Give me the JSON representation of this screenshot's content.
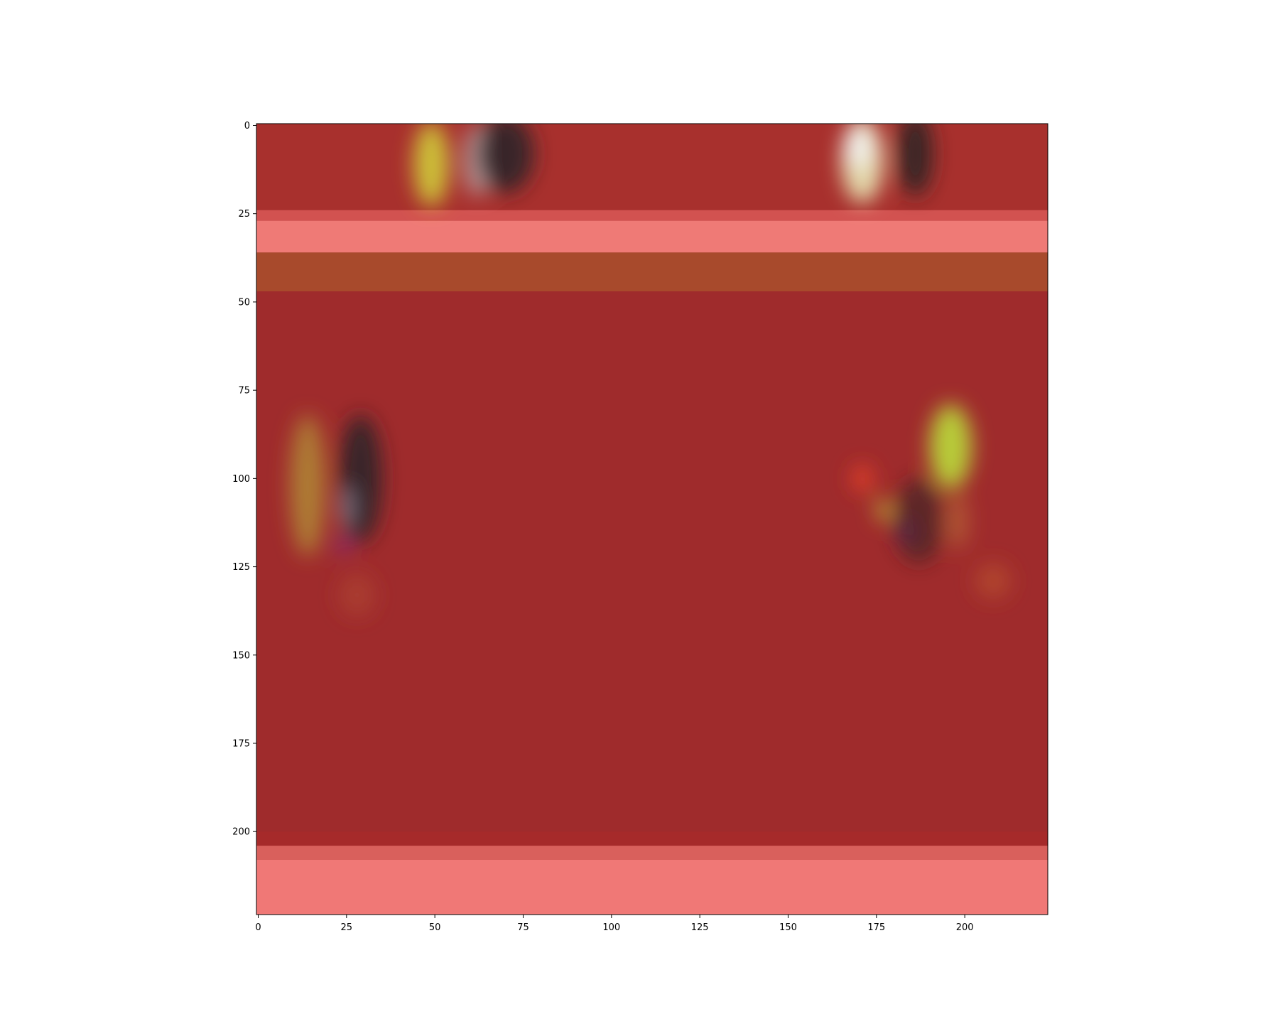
{
  "chart_data": {
    "type": "heatmap",
    "title": "",
    "xlabel": "",
    "ylabel": "",
    "xlim": [
      -0.5,
      223.5
    ],
    "ylim": [
      223.5,
      -0.5
    ],
    "x_ticks": [
      0,
      25,
      50,
      75,
      100,
      125,
      150,
      175,
      200
    ],
    "y_ticks": [
      0,
      25,
      50,
      75,
      100,
      125,
      150,
      175,
      200
    ],
    "x_tick_labels": [
      "0",
      "25",
      "50",
      "75",
      "100",
      "125",
      "150",
      "175",
      "200"
    ],
    "y_tick_labels": [
      "0",
      "25",
      "50",
      "75",
      "100",
      "125",
      "150",
      "175",
      "200"
    ],
    "grid": false,
    "image_size": [
      224,
      224
    ],
    "colors": {
      "base": "#a12a2b",
      "band_dark": "#9b2a2c",
      "band_light": "#f07a77",
      "band_brown": "#a84a2c",
      "yellow": "#c8c23a",
      "yellow_green": "#b5d23c",
      "white": "#e8e8e0",
      "dark": "#3a2a2c",
      "orange_red": "#e0452a",
      "purple": "#7a2aa8",
      "olive": "#9a7a3a"
    },
    "regions": [
      {
        "kind": "band",
        "y0": -0.5,
        "y1": 24,
        "color": "#a8302d"
      },
      {
        "kind": "band",
        "y0": 24,
        "y1": 27,
        "color": "#d25250"
      },
      {
        "kind": "band",
        "y0": 27,
        "y1": 36,
        "color": "#ef7a76"
      },
      {
        "kind": "band",
        "y0": 36,
        "y1": 47,
        "color": "#a84a2c"
      },
      {
        "kind": "band",
        "y0": 47,
        "y1": 200,
        "color": "#9f2b2c"
      },
      {
        "kind": "band",
        "y0": 200,
        "y1": 204,
        "color": "#a62a2a"
      },
      {
        "kind": "band",
        "y0": 204,
        "y1": 208,
        "color": "#d9605c"
      },
      {
        "kind": "band",
        "y0": 208,
        "y1": 223.5,
        "color": "#f07876"
      },
      {
        "kind": "blob",
        "x": 49,
        "y": 11,
        "rx": 5,
        "ry": 12,
        "color": "#cfc63a",
        "opacity": 0.95
      },
      {
        "kind": "blob",
        "x": 62,
        "y": 10,
        "rx": 4,
        "ry": 10,
        "color": "#b8a8a8",
        "opacity": 0.8
      },
      {
        "kind": "blob",
        "x": 70,
        "y": 8,
        "rx": 8,
        "ry": 11,
        "color": "#2e2427",
        "opacity": 0.9
      },
      {
        "kind": "blob",
        "x": 171,
        "y": 10,
        "rx": 6,
        "ry": 12,
        "color": "#e6e0b0",
        "opacity": 0.95
      },
      {
        "kind": "blob",
        "x": 170,
        "y": 6,
        "rx": 4,
        "ry": 6,
        "color": "#f2f2f2",
        "opacity": 0.9
      },
      {
        "kind": "blob",
        "x": 186,
        "y": 8,
        "rx": 5,
        "ry": 12,
        "color": "#2c2426",
        "opacity": 0.9
      },
      {
        "kind": "blob",
        "x": 14,
        "y": 102,
        "rx": 5,
        "ry": 20,
        "color": "#b08a36",
        "opacity": 0.85
      },
      {
        "kind": "blob",
        "x": 29,
        "y": 100,
        "rx": 6,
        "ry": 18,
        "color": "#2e2628",
        "opacity": 0.9
      },
      {
        "kind": "blob",
        "x": 25,
        "y": 108,
        "rx": 2,
        "ry": 6,
        "color": "#8a8ca0",
        "opacity": 0.7
      },
      {
        "kind": "blob",
        "x": 24,
        "y": 119,
        "rx": 2,
        "ry": 2,
        "color": "#7a2aa8",
        "opacity": 0.8
      },
      {
        "kind": "blob",
        "x": 28,
        "y": 133,
        "rx": 5,
        "ry": 6,
        "color": "#b04a30",
        "opacity": 0.6
      },
      {
        "kind": "blob",
        "x": 196,
        "y": 91,
        "rx": 6,
        "ry": 12,
        "color": "#b8d43a",
        "opacity": 0.95
      },
      {
        "kind": "blob",
        "x": 171,
        "y": 100,
        "rx": 3,
        "ry": 4,
        "color": "#e3402a",
        "opacity": 0.9
      },
      {
        "kind": "blob",
        "x": 177,
        "y": 109,
        "rx": 2,
        "ry": 3,
        "color": "#c0c83a",
        "opacity": 0.85
      },
      {
        "kind": "blob",
        "x": 183,
        "y": 115,
        "rx": 2,
        "ry": 3,
        "color": "#7a2aa8",
        "opacity": 0.9
      },
      {
        "kind": "blob",
        "x": 187,
        "y": 112,
        "rx": 7,
        "ry": 12,
        "color": "#3a2426",
        "opacity": 0.65
      },
      {
        "kind": "blob",
        "x": 198,
        "y": 112,
        "rx": 3,
        "ry": 8,
        "color": "#c07a3a",
        "opacity": 0.55
      },
      {
        "kind": "blob",
        "x": 208,
        "y": 129,
        "rx": 5,
        "ry": 5,
        "color": "#c05a32",
        "opacity": 0.55
      }
    ]
  }
}
